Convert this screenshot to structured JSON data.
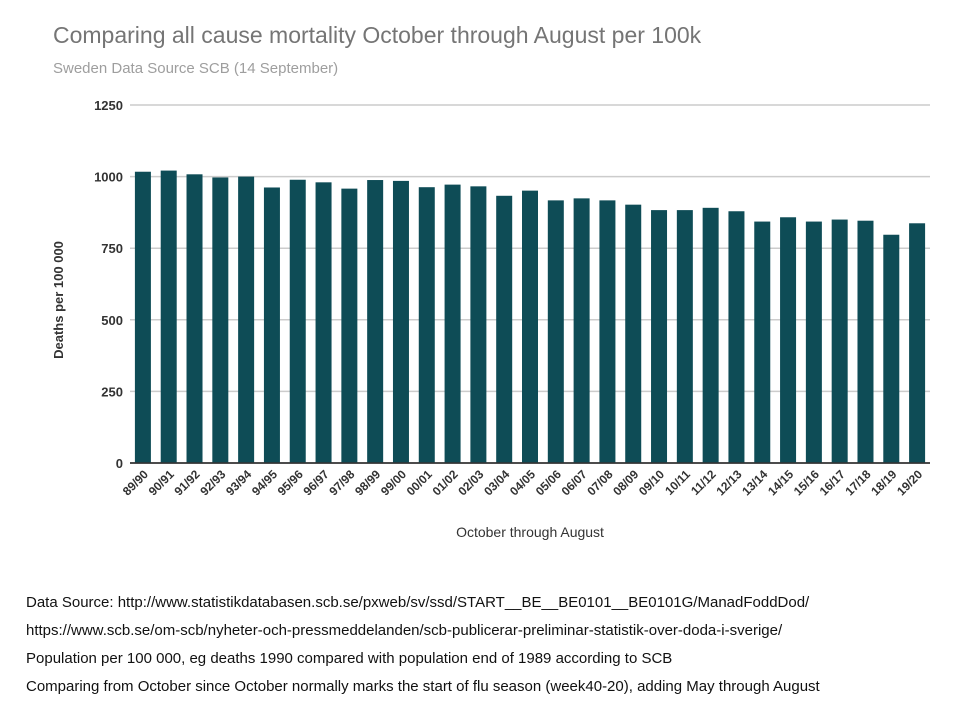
{
  "chart_data": {
    "type": "bar",
    "title": "Comparing all cause mortality October through August per 100k",
    "subtitle": "Sweden Data Source SCB (14 September)",
    "xlabel": "October through August",
    "ylabel": "Deaths per 100 000",
    "ylim": [
      0,
      1250
    ],
    "yticks": [
      "0",
      "250",
      "500",
      "750",
      "1000",
      "1250"
    ],
    "grid": true,
    "legend": "none",
    "bar_color": "#0e4c56",
    "categories": [
      "89/90",
      "90/91",
      "91/92",
      "92/93",
      "93/94",
      "94/95",
      "95/96",
      "96/97",
      "97/98",
      "98/99",
      "99/00",
      "00/01",
      "01/02",
      "02/03",
      "03/04",
      "04/05",
      "05/06",
      "06/07",
      "07/08",
      "08/09",
      "09/10",
      "10/11",
      "11/12",
      "12/13",
      "13/14",
      "14/15",
      "15/16",
      "16/17",
      "17/18",
      "18/19",
      "19/20"
    ],
    "values": [
      1017,
      1021,
      1008,
      997,
      1000,
      962,
      989,
      980,
      958,
      988,
      985,
      963,
      972,
      966,
      933,
      951,
      917,
      924,
      917,
      902,
      883,
      883,
      891,
      879,
      843,
      858,
      843,
      850,
      846,
      797,
      837
    ]
  },
  "notes": [
    "Data Source: http://www.statistikdatabasen.scb.se/pxweb/sv/ssd/START__BE__BE0101__BE0101G/ManadFoddDod/",
    "https://www.scb.se/om-scb/nyheter-och-pressmeddelanden/scb-publicerar-preliminar-statistik-over-doda-i-sverige/",
    "Population per 100 000, eg deaths 1990 compared with population end of 1989 according to SCB",
    "Comparing from October since October normally marks the start of flu season (week40-20), adding May through August"
  ]
}
